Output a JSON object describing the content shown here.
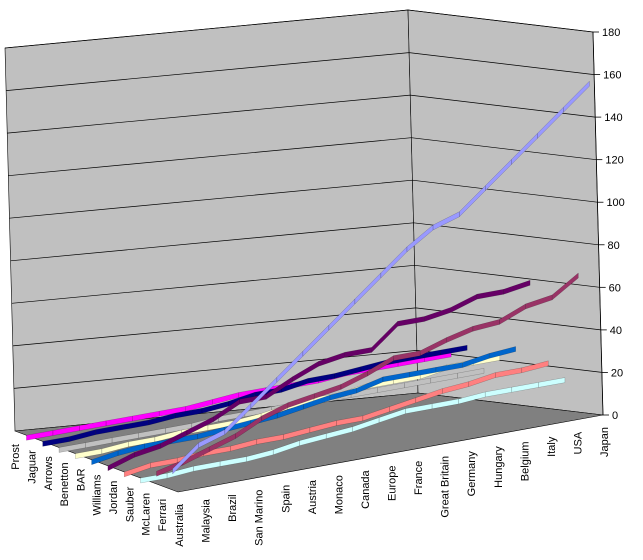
{
  "chart_data": {
    "type": "line",
    "variant": "3d-ribbon",
    "title": "",
    "xlabel": "",
    "ylabel": "",
    "ylim": [
      0,
      180
    ],
    "y_ticks": [
      "0",
      "20",
      "40",
      "60",
      "80",
      "100",
      "120",
      "140",
      "160",
      "180"
    ],
    "grid": true,
    "legend": "none",
    "categories": [
      "Australia",
      "Malaysia",
      "Brazil",
      "San Marino",
      "Spain",
      "Austria",
      "Monaco",
      "Canada",
      "Europe",
      "France",
      "Great Britain",
      "Germany",
      "Hungary",
      "Belgium",
      "Italy",
      "USA",
      "Japan"
    ],
    "depth_categories": [
      "Prost",
      "Jaguar",
      "Arrows",
      "Benetton",
      "BAR",
      "Williams",
      "Jordan",
      "Sauber",
      "McLaren",
      "Ferrari"
    ],
    "colors": {
      "wall": "#c0c0c0",
      "floor": "#808080",
      "gridline": "#000000"
    },
    "series": [
      {
        "name": "Ferrari",
        "color": "#9999ff",
        "values": [
          10,
          20,
          24,
          34,
          44,
          54,
          64,
          74,
          84,
          94,
          102,
          106,
          116,
          126,
          136,
          146,
          156
        ]
      },
      {
        "name": "McLaren",
        "color": "#993366",
        "values": [
          6,
          9,
          13,
          17,
          23,
          27,
          29,
          31,
          35,
          40,
          40,
          44,
          47,
          48,
          53,
          55,
          63
        ]
      },
      {
        "name": "Sauber",
        "color": "#ccffff",
        "values": [
          0,
          0,
          1,
          1,
          1,
          2,
          4,
          5,
          6,
          8,
          10,
          10,
          10,
          11,
          11,
          11,
          11
        ]
      },
      {
        "name": "Jordan",
        "color": "#ff8080",
        "values": [
          0,
          2,
          2,
          3,
          3,
          4,
          4,
          5,
          6,
          6,
          8,
          10,
          12,
          13,
          15,
          15,
          16
        ]
      },
      {
        "name": "Williams",
        "color": "#660066",
        "values": [
          0,
          4,
          6,
          10,
          14,
          20,
          20,
          26,
          31,
          33,
          33,
          43,
          43,
          45,
          49,
          49,
          51
        ]
      },
      {
        "name": "BAR",
        "color": "#0066cc",
        "values": [
          0,
          2,
          3,
          3,
          3,
          4,
          5,
          6,
          8,
          10,
          11,
          14,
          14,
          14,
          14,
          16,
          17
        ]
      },
      {
        "name": "Benetton",
        "color": "#ffffcc",
        "values": [
          0,
          0,
          1,
          1,
          2,
          2,
          2,
          3,
          5,
          6,
          6,
          8,
          8,
          8,
          10,
          10,
          10
        ]
      },
      {
        "name": "Arrows",
        "color": "#c0c0c0",
        "values": [
          0,
          0,
          0,
          0,
          0,
          0,
          1,
          1,
          1,
          1,
          1,
          1,
          1,
          1,
          1,
          1,
          1
        ]
      },
      {
        "name": "Jaguar",
        "color": "#000080",
        "values": [
          0,
          0,
          1,
          1,
          1,
          2,
          2,
          3,
          5,
          5,
          7,
          7,
          8,
          9,
          9,
          9,
          9
        ]
      },
      {
        "name": "Prost",
        "color": "#ff00ff",
        "values": [
          0,
          0,
          0,
          0,
          0,
          0,
          0,
          1,
          2,
          2,
          2,
          2,
          3,
          3,
          3,
          3,
          3
        ]
      }
    ]
  }
}
